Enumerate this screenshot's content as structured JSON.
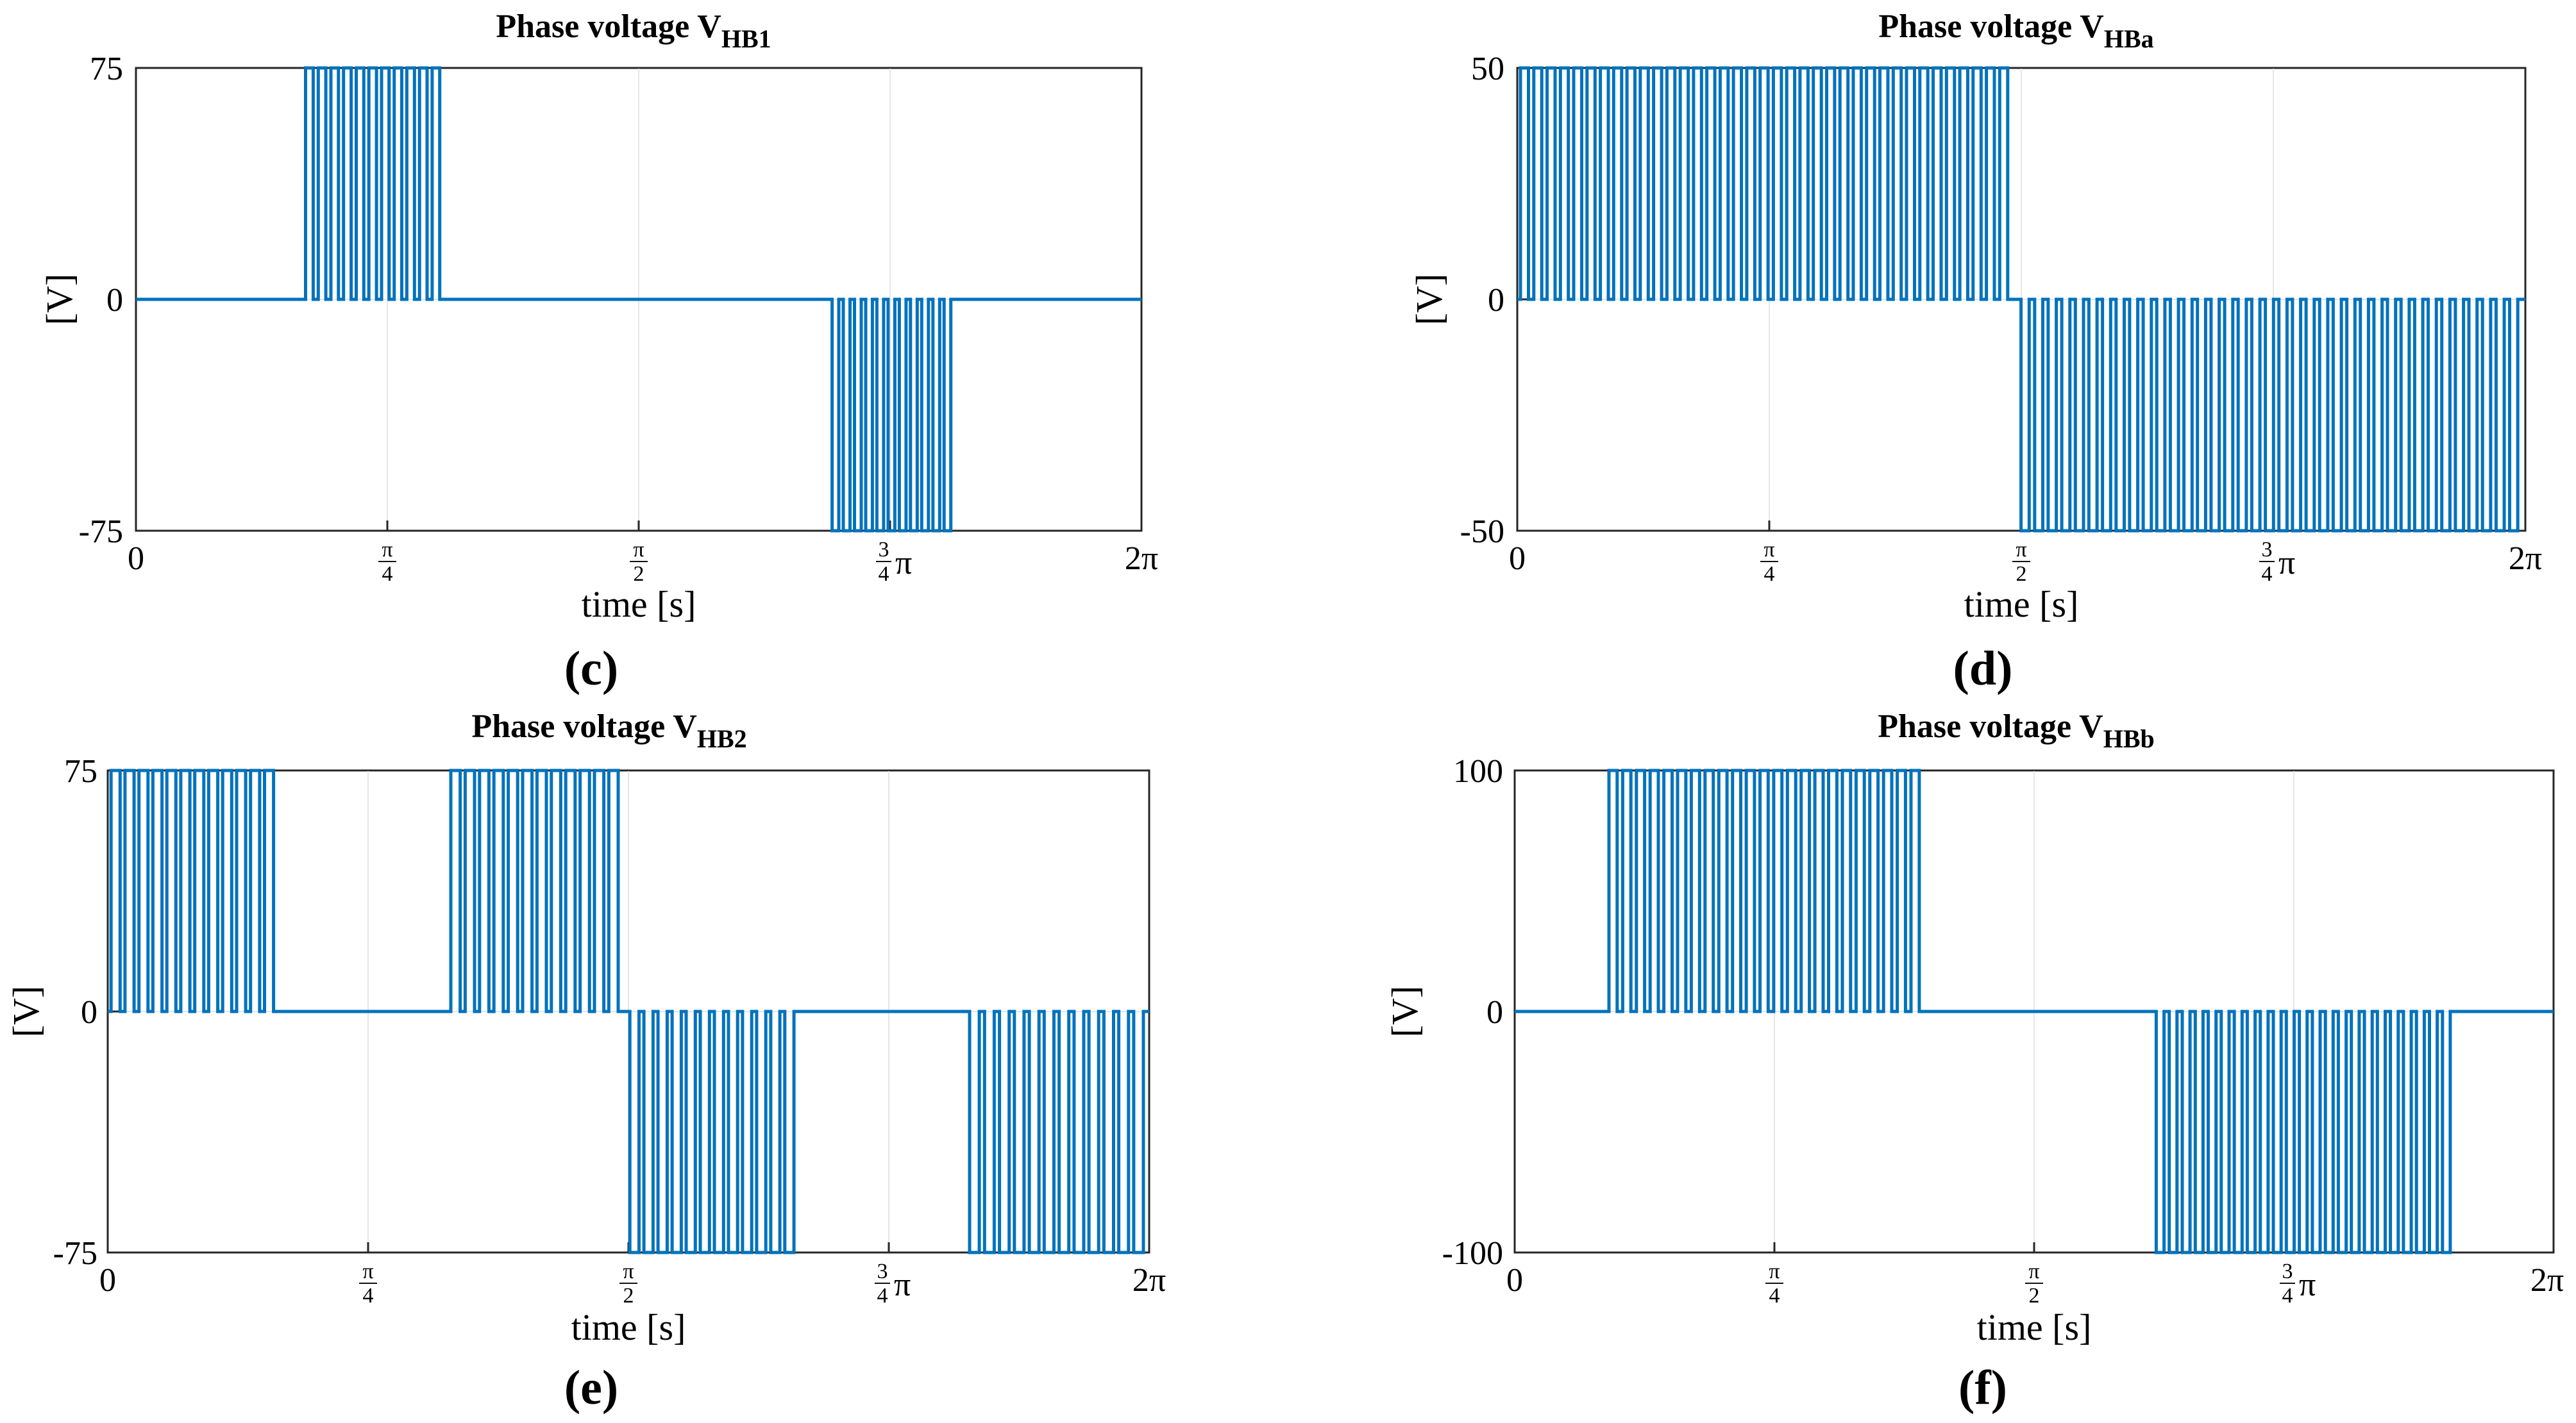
{
  "chart_data": [
    {
      "id": "c",
      "type": "line",
      "title": "Phase voltage V",
      "title_sub": "HB1",
      "caption": "c",
      "xlabel": "time [s]",
      "ylabel": "[V]",
      "xlim": [
        0,
        6.2832
      ],
      "ylim": [
        -75,
        75
      ],
      "yticks": [
        -75,
        0,
        75
      ],
      "ytick_labels": [
        "-75",
        "0",
        "75"
      ],
      "grid": true,
      "color": "#0072BD",
      "series": [
        {
          "segments": [
            {
              "start": 1.06,
              "end": 1.93,
              "level": 75,
              "pulses": 11,
              "duty": 0.6
            },
            {
              "start": 4.35,
              "end": 5.12,
              "level": -75,
              "pulses": 11,
              "duty": 0.6
            }
          ]
        }
      ]
    },
    {
      "id": "d",
      "type": "line",
      "title": "Phase voltage V",
      "title_sub": "HBa",
      "caption": "d",
      "xlabel": "time [s]",
      "ylabel": "[V]",
      "xlim": [
        0,
        6.2832
      ],
      "ylim": [
        -50,
        50
      ],
      "yticks": [
        -50,
        0,
        50
      ],
      "ytick_labels": [
        "-50",
        "0",
        "50"
      ],
      "grid": true,
      "color": "#0072BD",
      "series": [
        {
          "segments": [
            {
              "start": 0.02,
              "end": 3.09,
              "level": 50,
              "pulses": 37,
              "duty": 0.6
            },
            {
              "start": 3.14,
              "end": 6.27,
              "level": -50,
              "pulses": 37,
              "duty": 0.6
            }
          ]
        }
      ]
    },
    {
      "id": "e",
      "type": "line",
      "title": "Phase voltage V",
      "title_sub": "HB2",
      "caption": "e",
      "xlabel": "time [s]",
      "ylabel": "[V]",
      "xlim": [
        0,
        6.2832
      ],
      "ylim": [
        -75,
        75
      ],
      "yticks": [
        -75,
        0,
        75
      ],
      "ytick_labels": [
        "-75",
        "0",
        "75"
      ],
      "grid": true,
      "color": "#0072BD",
      "series": [
        {
          "segments": [
            {
              "start": 0.02,
              "end": 1.03,
              "level": 75,
              "pulses": 12,
              "duty": 0.65
            },
            {
              "start": 2.07,
              "end": 3.11,
              "level": 75,
              "pulses": 12,
              "duty": 0.65
            },
            {
              "start": 3.15,
              "end": 4.17,
              "level": -75,
              "pulses": 12,
              "duty": 0.65
            },
            {
              "start": 5.2,
              "end": 6.28,
              "level": -75,
              "pulses": 12,
              "duty": 0.65
            }
          ]
        }
      ]
    },
    {
      "id": "f",
      "type": "line",
      "title": "Phase voltage V",
      "title_sub": "HBb",
      "caption": "f",
      "xlabel": "time [s]",
      "ylabel": "[V]",
      "xlim": [
        0,
        6.2832
      ],
      "ylim": [
        -100,
        100
      ],
      "yticks": [
        -100,
        0,
        100
      ],
      "ytick_labels": [
        "-100",
        "0",
        "100"
      ],
      "grid": true,
      "color": "#0072BD",
      "series": [
        {
          "segments": [
            {
              "start": 0.57,
              "end": 2.48,
              "level": 100,
              "pulses": 23,
              "duty": 0.6
            },
            {
              "start": 3.88,
              "end": 5.69,
              "level": -100,
              "pulses": 23,
              "duty": 0.6
            }
          ]
        }
      ]
    }
  ],
  "xtick_labels": {
    "zero": "0",
    "pi": "π",
    "pi_over_4": {
      "num": "π",
      "den": "4"
    },
    "pi_over_2": {
      "num": "π",
      "den": "2"
    },
    "three_quarter_pi": {
      "num": "3",
      "den": "4",
      "tail": "π"
    },
    "two_pi": "2π"
  }
}
